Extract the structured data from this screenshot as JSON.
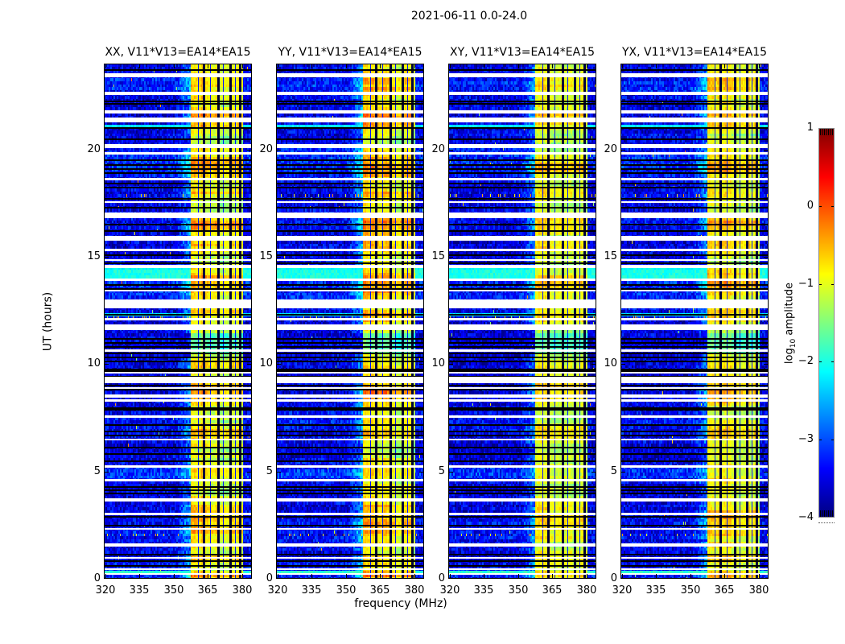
{
  "chart_data": {
    "type": "heatmap",
    "title": "2021-06-11 0.0-24.0",
    "panels": [
      {
        "id": "xx",
        "title": "XX, V11*V13=EA14*EA15",
        "band_gain": 1.0,
        "bg_offset": 0.0,
        "seed": 11
      },
      {
        "id": "yy",
        "title": "YY, V11*V13=EA14*EA15",
        "band_gain": 1.07,
        "bg_offset": 0.02,
        "seed": 42
      },
      {
        "id": "xy",
        "title": "XY, V11*V13=EA14*EA15",
        "band_gain": 0.88,
        "bg_offset": -0.03,
        "seed": 73
      },
      {
        "id": "yx",
        "title": "YX, V11*V13=EA14*EA15",
        "band_gain": 0.95,
        "bg_offset": -0.01,
        "seed": 94
      }
    ],
    "x_axis": {
      "label": "frequency (MHz)",
      "range": [
        319.3,
        384.3
      ],
      "ticks": [
        320,
        335,
        350,
        365,
        380
      ]
    },
    "y_axis": {
      "label": "UT (hours)",
      "range": [
        0,
        24
      ],
      "ticks": [
        0,
        5,
        10,
        15,
        20
      ]
    },
    "colorbar": {
      "label_prefix": "log",
      "label_sub": "10",
      "label_suffix": " amplitude",
      "range": [
        -4,
        1
      ],
      "ticks": [
        "1",
        "0",
        "−1",
        "−2",
        "−3",
        "−4"
      ],
      "tick_values": [
        1,
        0,
        -1,
        -2,
        -3,
        -4
      ],
      "colormap": "jet"
    },
    "background_level": -3.55,
    "rfi_band": {
      "start_mhz": 357.5,
      "end_mhz": 380.3,
      "notch_mhz": [
        363.2,
        369.6,
        374.9,
        379.1
      ],
      "notch_width_mhz": 1.0,
      "minor_notch_mhz": [
        360.8,
        366.2,
        371.8,
        377.0
      ],
      "minor_notch_width_mhz": 0.45,
      "column_profile": [
        [
          357.5,
          363.2,
          0.22
        ],
        [
          363.2,
          369.6,
          0.12
        ],
        [
          369.6,
          374.9,
          -0.08
        ],
        [
          374.9,
          379.1,
          0.05
        ],
        [
          379.1,
          380.3,
          -0.15
        ]
      ]
    },
    "data_gaps_hours": [
      [
        23.45,
        0.18
      ],
      [
        22.6,
        0.15
      ],
      [
        21.75,
        0.15
      ],
      [
        21.38,
        0.22
      ],
      [
        20.15,
        0.18
      ],
      [
        19.82,
        0.08
      ],
      [
        18.62,
        0.1
      ],
      [
        17.55,
        0.1
      ],
      [
        16.92,
        0.26
      ],
      [
        15.85,
        0.22
      ],
      [
        15.32,
        0.1
      ],
      [
        14.85,
        0.1
      ],
      [
        14.55,
        0.18
      ],
      [
        13.92,
        0.1
      ],
      [
        13.42,
        0.1
      ],
      [
        12.82,
        0.42
      ],
      [
        12.1,
        0.1
      ],
      [
        11.72,
        0.26
      ],
      [
        10.62,
        0.1
      ],
      [
        9.6,
        0.1
      ],
      [
        9.25,
        0.3
      ],
      [
        8.9,
        0.08
      ],
      [
        8.5,
        0.15
      ],
      [
        8.3,
        0.12
      ],
      [
        7.55,
        0.1
      ],
      [
        6.5,
        0.08
      ],
      [
        5.22,
        0.12
      ],
      [
        4.6,
        0.1
      ],
      [
        3.67,
        0.13
      ],
      [
        3.02,
        0.1
      ],
      [
        2.32,
        0.08
      ],
      [
        1.57,
        0.13
      ],
      [
        0.97,
        0.08
      ],
      [
        0.45,
        0.07
      ],
      [
        0.22,
        0.06
      ]
    ],
    "flagged_lines_hours": [
      23.75,
      22.28,
      22.18,
      21.05,
      20.5,
      19.52,
      19.32,
      19.12,
      18.92,
      18.45,
      18.25,
      17.72,
      17.32,
      16.55,
      16.22,
      15.12,
      14.72,
      13.72,
      13.55,
      12.35,
      11.22,
      11.02,
      10.82,
      10.55,
      10.35,
      10.15,
      9.78,
      9.7,
      9.45,
      9.05,
      8.85,
      8.0,
      7.92,
      7.2,
      6.9,
      6.7,
      6.15,
      5.85,
      5.5,
      4.3,
      4.15,
      4.02,
      2.92,
      2.52,
      1.15,
      1.02,
      0.85,
      0.62
    ],
    "bright_rows": [
      [
        14.2,
        0.3,
        -2.0
      ],
      [
        14.5,
        0.08,
        -2.1
      ],
      [
        21.1,
        0.08,
        -2.2
      ],
      [
        12.3,
        0.08,
        -2.3
      ],
      [
        8.05,
        0.08,
        -2.4
      ],
      [
        0.32,
        0.1,
        -1.9
      ],
      [
        0.12,
        0.1,
        -2.0
      ],
      [
        3.87,
        0.1,
        -1.4
      ]
    ],
    "speckle_rows_hours": [
      17.9,
      12.2,
      2.05
    ],
    "bg_bumps": [
      [
        19.4,
        0.6,
        0.35
      ],
      [
        13.2,
        0.4,
        0.3
      ],
      [
        7.3,
        0.4,
        0.2
      ],
      [
        4.95,
        0.25,
        0.45
      ],
      [
        2.3,
        0.5,
        0.2
      ],
      [
        23.0,
        0.35,
        0.3
      ],
      [
        16.8,
        0.25,
        0.2
      ],
      [
        0.35,
        0.25,
        0.4
      ],
      [
        14.15,
        0.3,
        0.5
      ]
    ],
    "band_peaks": [
      [
        21.5,
        0.3,
        0.5
      ],
      [
        19.2,
        0.4,
        0.55
      ],
      [
        18.0,
        0.25,
        0.3
      ],
      [
        16.5,
        0.3,
        0.55
      ],
      [
        13.7,
        0.4,
        0.5
      ],
      [
        12.3,
        0.25,
        0.35
      ],
      [
        8.7,
        0.4,
        0.5
      ],
      [
        6.8,
        0.3,
        0.4
      ],
      [
        5.0,
        0.4,
        0.25
      ],
      [
        2.7,
        0.7,
        0.45
      ],
      [
        0.9,
        0.25,
        0.3
      ],
      [
        0.15,
        0.12,
        0.55
      ],
      [
        23.1,
        0.6,
        0.35
      ],
      [
        15.5,
        0.25,
        0.35
      ],
      [
        9.9,
        0.3,
        0.3
      ]
    ],
    "band_weak_interval_hours": [
      10.45,
      11.5
    ],
    "colors": {
      "figure_background": "#ffffff",
      "frame": "#000000",
      "text": "#000000",
      "gap": "#ffffff",
      "flag": "#000000"
    }
  }
}
